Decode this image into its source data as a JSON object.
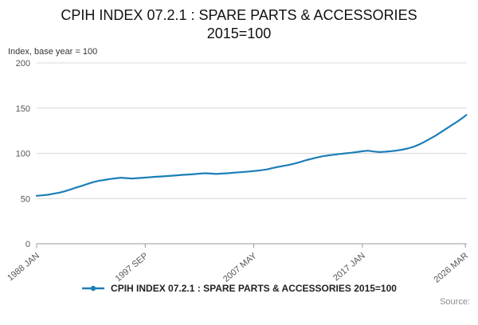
{
  "title": "CPIH INDEX 07.2.1 : SPARE PARTS & ACCESSORIES 2015=100",
  "axis_note": "Index, base year = 100",
  "legend_label": "CPIH INDEX 07.2.1 : SPARE PARTS & ACCESSORIES 2015=100",
  "source_label": "Source:",
  "colors": {
    "line": "#1d7eb8",
    "grid": "#d8d8d8",
    "axis": "#999999",
    "tick_text": "#555555"
  },
  "chart_data": {
    "type": "line",
    "title": "CPIH INDEX 07.2.1 : SPARE PARTS & ACCESSORIES 2015=100",
    "xlabel": "",
    "ylabel": "Index, base year = 100",
    "ylim": [
      0,
      200
    ],
    "yticks": [
      0,
      50,
      100,
      150,
      200
    ],
    "xlim": [
      1988.0,
      2026.3
    ],
    "xticks": [
      {
        "label": "1988 JAN",
        "x": 1988.0
      },
      {
        "label": "1997 SEP",
        "x": 1997.667
      },
      {
        "label": "2007 MAY",
        "x": 2007.333
      },
      {
        "label": "2017 JAN",
        "x": 2017.0
      },
      {
        "label": "2026 MAR",
        "x": 2026.167
      }
    ],
    "grid": true,
    "legend_position": "bottom",
    "series": [
      {
        "name": "CPIH INDEX 07.2.1 : SPARE PARTS & ACCESSORIES 2015=100",
        "x": [
          1988,
          1988.5,
          1989,
          1989.5,
          1990,
          1990.5,
          1991,
          1991.5,
          1992,
          1992.5,
          1993,
          1993.5,
          1994,
          1994.5,
          1995,
          1995.5,
          1996,
          1996.5,
          1997,
          1997.5,
          1998,
          1998.5,
          1999,
          1999.5,
          2000,
          2000.5,
          2001,
          2001.5,
          2002,
          2002.5,
          2003,
          2003.5,
          2004,
          2004.5,
          2005,
          2005.5,
          2006,
          2006.5,
          2007,
          2007.5,
          2008,
          2008.5,
          2009,
          2009.5,
          2010,
          2010.5,
          2011,
          2011.5,
          2012,
          2012.5,
          2013,
          2013.5,
          2014,
          2014.5,
          2015,
          2015.5,
          2016,
          2016.5,
          2017,
          2017.5,
          2018,
          2018.5,
          2019,
          2019.5,
          2020,
          2020.5,
          2021,
          2021.5,
          2022,
          2022.5,
          2023,
          2023.5,
          2024,
          2024.5,
          2025,
          2025.5,
          2026,
          2026.25
        ],
        "values": [
          53,
          53.6,
          54.2,
          55.3,
          56.5,
          58,
          60,
          62,
          64,
          66,
          68,
          69.5,
          70.5,
          71.5,
          72.3,
          73,
          72.6,
          72.2,
          72.6,
          73,
          73.5,
          74,
          74.4,
          74.8,
          75.2,
          75.7,
          76.2,
          76.6,
          77,
          77.5,
          78,
          77.6,
          77.2,
          77.6,
          78,
          78.5,
          79,
          79.5,
          80,
          80.6,
          81.3,
          82.2,
          83.8,
          85,
          86.2,
          87.3,
          88.8,
          90.5,
          92.5,
          94,
          95.5,
          96.8,
          97.8,
          98.5,
          99.3,
          100,
          100.6,
          101.4,
          102.3,
          102.9,
          102,
          101.4,
          101.8,
          102.3,
          103,
          104,
          105.3,
          107,
          109.5,
          112.5,
          116,
          119.5,
          123.5,
          127.5,
          131.5,
          135.5,
          140,
          142.5
        ]
      }
    ]
  }
}
